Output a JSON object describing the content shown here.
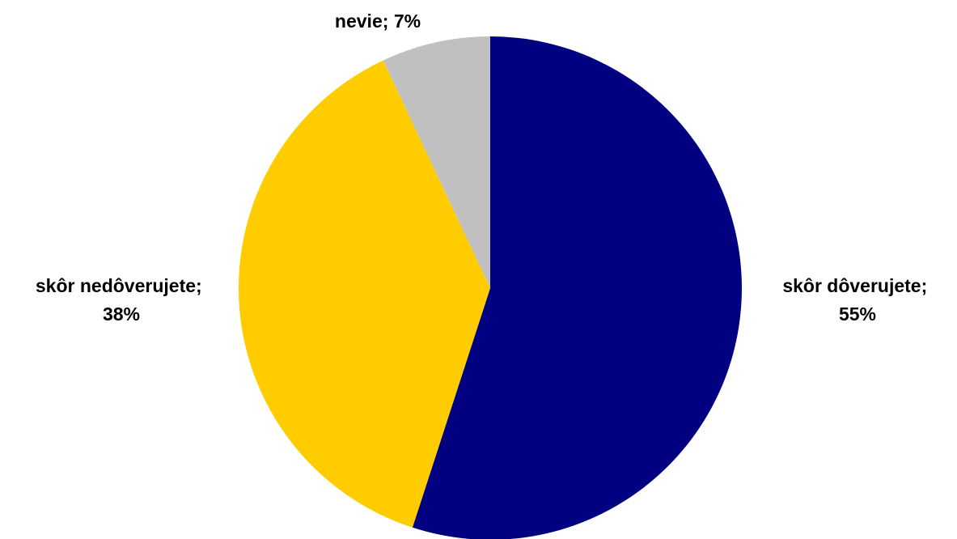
{
  "chart_data": {
    "type": "pie",
    "start_angle_deg": 0,
    "direction": "clockwise",
    "slices": [
      {
        "label": "skôr dôverujete",
        "value": 55,
        "value_label": "55%",
        "color": "#000080"
      },
      {
        "label": "skôr nedôverujete",
        "value": 38,
        "value_label": "38%",
        "color": "#FFCC00"
      },
      {
        "label": "nevie",
        "value": 7,
        "value_label": "7%",
        "color": "#C0C0C0"
      }
    ]
  }
}
